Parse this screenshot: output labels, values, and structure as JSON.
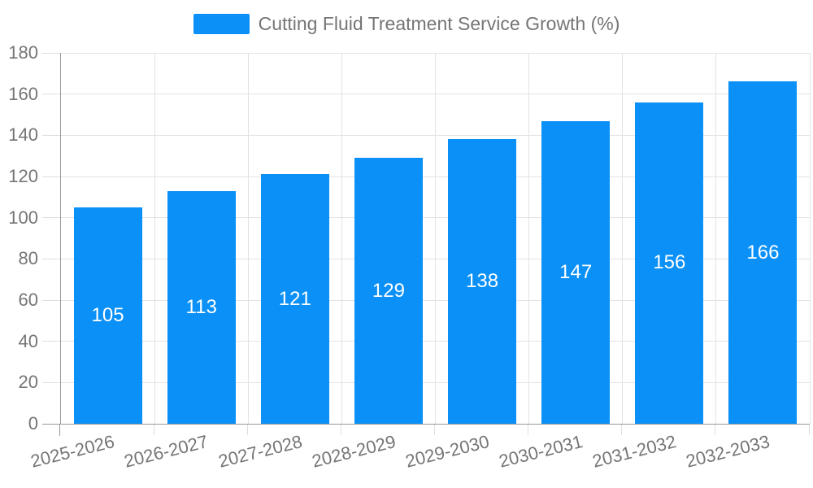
{
  "colors": {
    "bar": "#0a90f6",
    "axis": "#999999",
    "grid": "#e3e3e3",
    "tick": "#dedede",
    "text": "#757575",
    "value_text": "#ffffff",
    "background": "#ffffff"
  },
  "legend": {
    "label": "Cutting Fluid Treatment Service Growth (%)"
  },
  "chart_data": {
    "type": "bar",
    "title": "Cutting Fluid Treatment Service Growth (%)",
    "categories": [
      "2025-2026",
      "2026-2027",
      "2027-2028",
      "2028-2029",
      "2029-2030",
      "2030-2031",
      "2031-2032",
      "2032-2033"
    ],
    "values": [
      105,
      113,
      121,
      129,
      138,
      147,
      156,
      166
    ],
    "series": [
      {
        "name": "Cutting Fluid Treatment Service Growth (%)",
        "values": [
          105,
          113,
          121,
          129,
          138,
          147,
          156,
          166
        ]
      }
    ],
    "xlabel": "",
    "ylabel": "",
    "ylim": [
      0,
      180
    ],
    "ytick_step": 20,
    "yticks": [
      0,
      20,
      40,
      60,
      80,
      100,
      120,
      140,
      160,
      180
    ],
    "grid": true,
    "legend_position": "top-center",
    "value_labels": "inside-center",
    "x_label_rotation_deg": -14
  }
}
